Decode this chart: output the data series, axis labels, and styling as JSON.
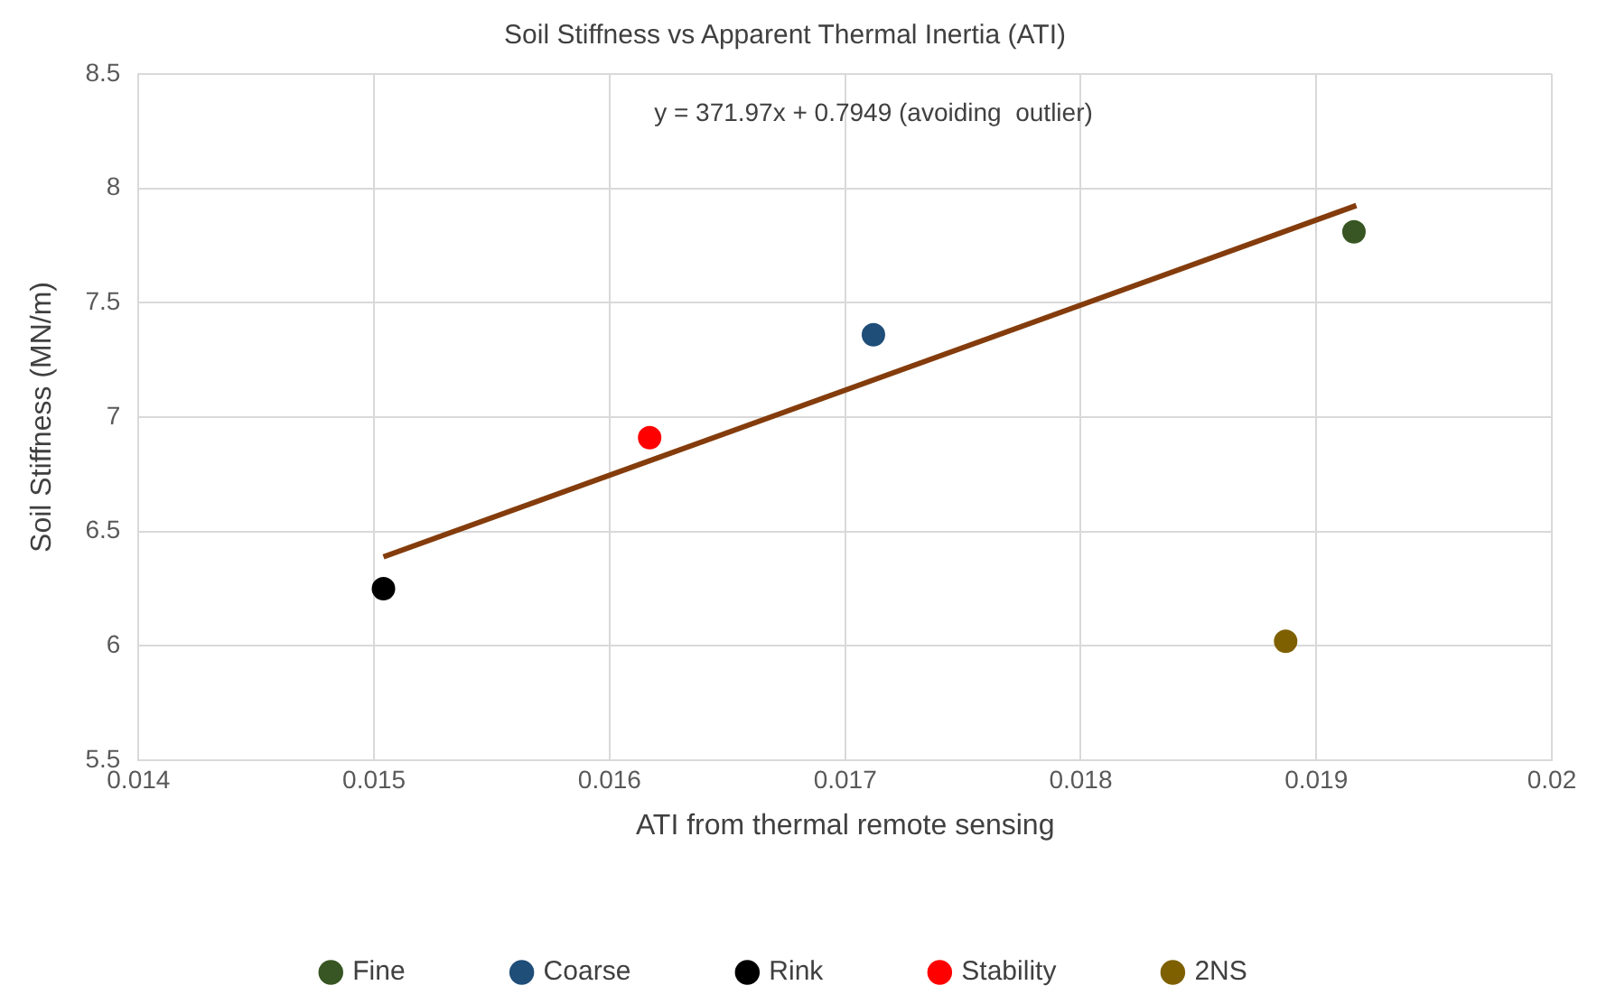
{
  "chart_data": {
    "type": "scatter",
    "title": "Soil Stiffness vs Apparent Thermal Inertia (ATI)",
    "xlabel": "ATI from thermal remote sensing",
    "ylabel": "Soil Stiffness (MN/m)",
    "annotations": [
      "y = 371.97x + 0.7949 (avoiding  outlier)"
    ],
    "series": [
      {
        "name": "Fine",
        "color": "#375623",
        "x": [
          0.01916
        ],
        "values": [
          7.81
        ]
      },
      {
        "name": "Coarse",
        "color": "#1f4e79",
        "x": [
          0.01712
        ],
        "values": [
          7.36
        ]
      },
      {
        "name": "Rink",
        "color": "#000000",
        "x": [
          0.01504
        ],
        "values": [
          6.25
        ]
      },
      {
        "name": "Stability",
        "color": "#ff0000",
        "x": [
          0.01617
        ],
        "values": [
          6.91
        ]
      },
      {
        "name": "2NS",
        "color": "#7f6000",
        "x": [
          0.01887
        ],
        "values": [
          6.02
        ]
      },
      {
        "type": "line",
        "marker": "none",
        "color": "#843c0c",
        "x": [
          0.01504,
          0.01917
        ],
        "values": [
          6.389,
          7.925
        ]
      }
    ],
    "xlim": [
      0.014,
      0.02
    ],
    "xticks": [
      0.014,
      0.015,
      0.016,
      0.017,
      0.018,
      0.019,
      0.02
    ],
    "ylim": [
      5.5,
      8.5
    ],
    "yticks": [
      5.5,
      6,
      6.5,
      7,
      7.5,
      8,
      8.5
    ],
    "grid": true,
    "legend": "bottom",
    "marker": "circle"
  }
}
